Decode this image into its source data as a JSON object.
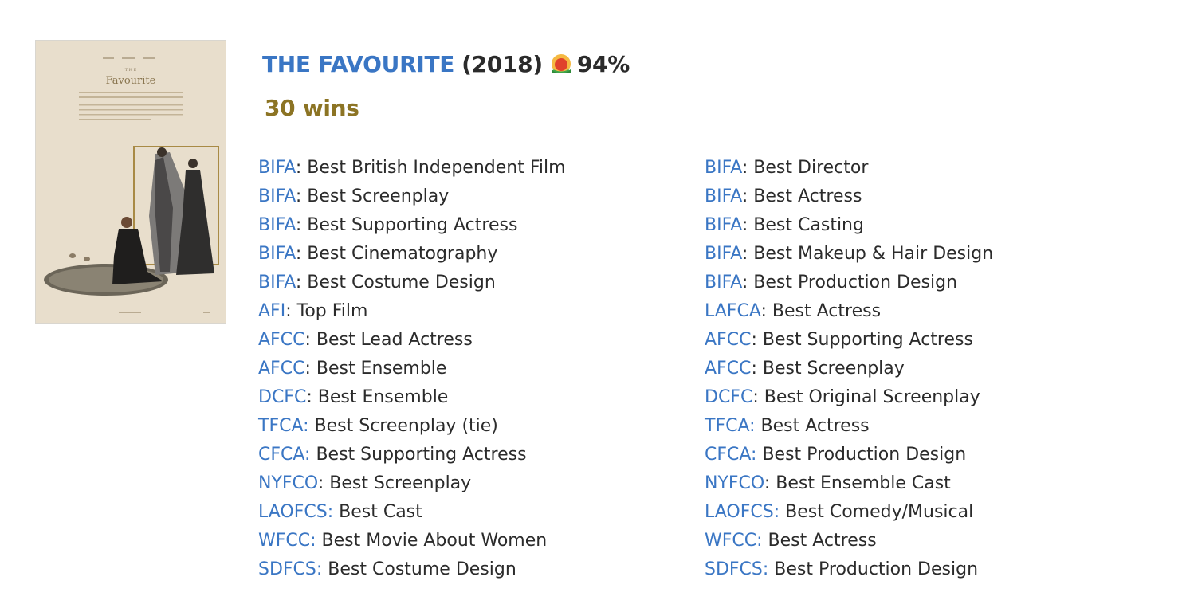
{
  "movie": {
    "title": "THE FAVOURITE",
    "year": "(2018)",
    "score": "94%",
    "score_icon": "fresh-tomato-icon",
    "wins": "30 wins"
  },
  "poster": {
    "title_text": "Favourite",
    "image_desc": "movie poster"
  },
  "colors": {
    "link": "#3a76c4",
    "text": "#2b2b2b",
    "wins": "#8c7424"
  },
  "awards_left": [
    {
      "org": "BIFA",
      "sep": ":",
      "award": " Best British Independent Film"
    },
    {
      "org": "BIFA",
      "sep": ":",
      "award": " Best Screenplay"
    },
    {
      "org": "BIFA",
      "sep": ":",
      "award": " Best Supporting Actress"
    },
    {
      "org": "BIFA",
      "sep": ":",
      "award": " Best Cinematography"
    },
    {
      "org": "BIFA",
      "sep": ":",
      "award": " Best Costume Design"
    },
    {
      "org": "AFI",
      "sep": ":",
      "award": " Top Film"
    },
    {
      "org": "AFCC",
      "sep": ":",
      "award": " Best Lead Actress"
    },
    {
      "org": "AFCC",
      "sep": ":",
      "award": " Best Ensemble"
    },
    {
      "org": "DCFC",
      "sep": ":",
      "award": " Best Ensemble"
    },
    {
      "org": "TFCA:",
      "sep": "",
      "award": " Best Screenplay (tie)"
    },
    {
      "org": "CFCA:",
      "sep": "",
      "award": " Best Supporting Actress"
    },
    {
      "org": "NYFCO",
      "sep": ":",
      "award": " Best Screenplay"
    },
    {
      "org": "LAOFCS:",
      "sep": "",
      "award": " Best Cast"
    },
    {
      "org": "WFCC:",
      "sep": "",
      "award": " Best Movie About Women"
    },
    {
      "org": "SDFCS:",
      "sep": "",
      "award": " Best Costume Design"
    }
  ],
  "awards_right": [
    {
      "org": "BIFA",
      "sep": ":",
      "award": " Best Director"
    },
    {
      "org": "BIFA",
      "sep": ":",
      "award": " Best Actress"
    },
    {
      "org": "BIFA",
      "sep": ":",
      "award": " Best Casting"
    },
    {
      "org": "BIFA",
      "sep": ":",
      "award": " Best Makeup & Hair Design"
    },
    {
      "org": "BIFA",
      "sep": ":",
      "award": " Best Production Design"
    },
    {
      "org": "LAFCA",
      "sep": ":",
      "award": " Best Actress"
    },
    {
      "org": "AFCC",
      "sep": ":",
      "award": " Best Supporting Actress"
    },
    {
      "org": "AFCC",
      "sep": ":",
      "award": " Best Screenplay"
    },
    {
      "org": "DCFC",
      "sep": ":",
      "award": " Best Original Screenplay"
    },
    {
      "org": "TFCA:",
      "sep": "",
      "award": " Best Actress"
    },
    {
      "org": "CFCA:",
      "sep": "",
      "award": " Best Production Design"
    },
    {
      "org": "NYFCO",
      "sep": ":",
      "award": " Best Ensemble Cast"
    },
    {
      "org": "LAOFCS:",
      "sep": "",
      "award": " Best Comedy/Musical"
    },
    {
      "org": "WFCC:",
      "sep": "",
      "award": " Best Actress"
    },
    {
      "org": "SDFCS:",
      "sep": "",
      "award": " Best Production Design"
    }
  ]
}
